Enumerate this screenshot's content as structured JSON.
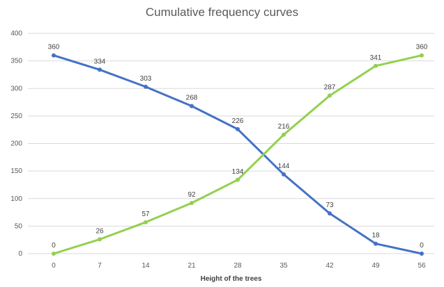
{
  "chart_data": {
    "type": "line",
    "title": "Cumulative frequency curves",
    "xlabel": "Height of the trees",
    "ylabel": "",
    "x": [
      0,
      7,
      14,
      21,
      28,
      35,
      42,
      49,
      56
    ],
    "ylim": [
      0,
      400
    ],
    "yticks": [
      0,
      50,
      100,
      150,
      200,
      250,
      300,
      350,
      400
    ],
    "grid": true,
    "series": [
      {
        "color": "#4472C4",
        "values": [
          360,
          334,
          303,
          268,
          226,
          144,
          73,
          18,
          0
        ],
        "labels": [
          "360",
          "334",
          "303",
          "268",
          "226",
          "144",
          "73",
          "18",
          "0"
        ]
      },
      {
        "color": "#92D050",
        "values": [
          0,
          26,
          57,
          92,
          134,
          216,
          287,
          341,
          360
        ],
        "labels": [
          "0",
          "26",
          "57",
          "92",
          "134",
          "216",
          "287",
          "341",
          "360"
        ]
      }
    ]
  }
}
